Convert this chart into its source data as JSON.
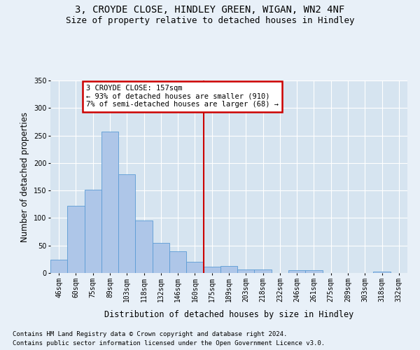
{
  "title1": "3, CROYDE CLOSE, HINDLEY GREEN, WIGAN, WN2 4NF",
  "title2": "Size of property relative to detached houses in Hindley",
  "xlabel": "Distribution of detached houses by size in Hindley",
  "ylabel": "Number of detached properties",
  "footnote1": "Contains HM Land Registry data © Crown copyright and database right 2024.",
  "footnote2": "Contains public sector information licensed under the Open Government Licence v3.0.",
  "bar_labels": [
    "46sqm",
    "60sqm",
    "75sqm",
    "89sqm",
    "103sqm",
    "118sqm",
    "132sqm",
    "146sqm",
    "160sqm",
    "175sqm",
    "189sqm",
    "203sqm",
    "218sqm",
    "232sqm",
    "246sqm",
    "261sqm",
    "275sqm",
    "289sqm",
    "303sqm",
    "318sqm",
    "332sqm"
  ],
  "bar_values": [
    24,
    122,
    152,
    257,
    180,
    96,
    55,
    40,
    21,
    12,
    13,
    7,
    6,
    0,
    5,
    5,
    0,
    0,
    0,
    2,
    0
  ],
  "bar_color": "#aec6e8",
  "bar_edge_color": "#5b9bd5",
  "vline_x": 8.5,
  "vline_color": "#cc0000",
  "annotation_text": "3 CROYDE CLOSE: 157sqm\n← 93% of detached houses are smaller (910)\n7% of semi-detached houses are larger (68) →",
  "annotation_box_edge": "#cc0000",
  "ylim": [
    0,
    350
  ],
  "yticks": [
    0,
    50,
    100,
    150,
    200,
    250,
    300,
    350
  ],
  "background_color": "#e8f0f8",
  "plot_bg_color": "#d6e4f0",
  "grid_color": "#ffffff",
  "title_fontsize": 10,
  "subtitle_fontsize": 9,
  "axis_label_fontsize": 8.5,
  "tick_fontsize": 7,
  "footnote_fontsize": 6.5,
  "annotation_fontsize": 7.5
}
